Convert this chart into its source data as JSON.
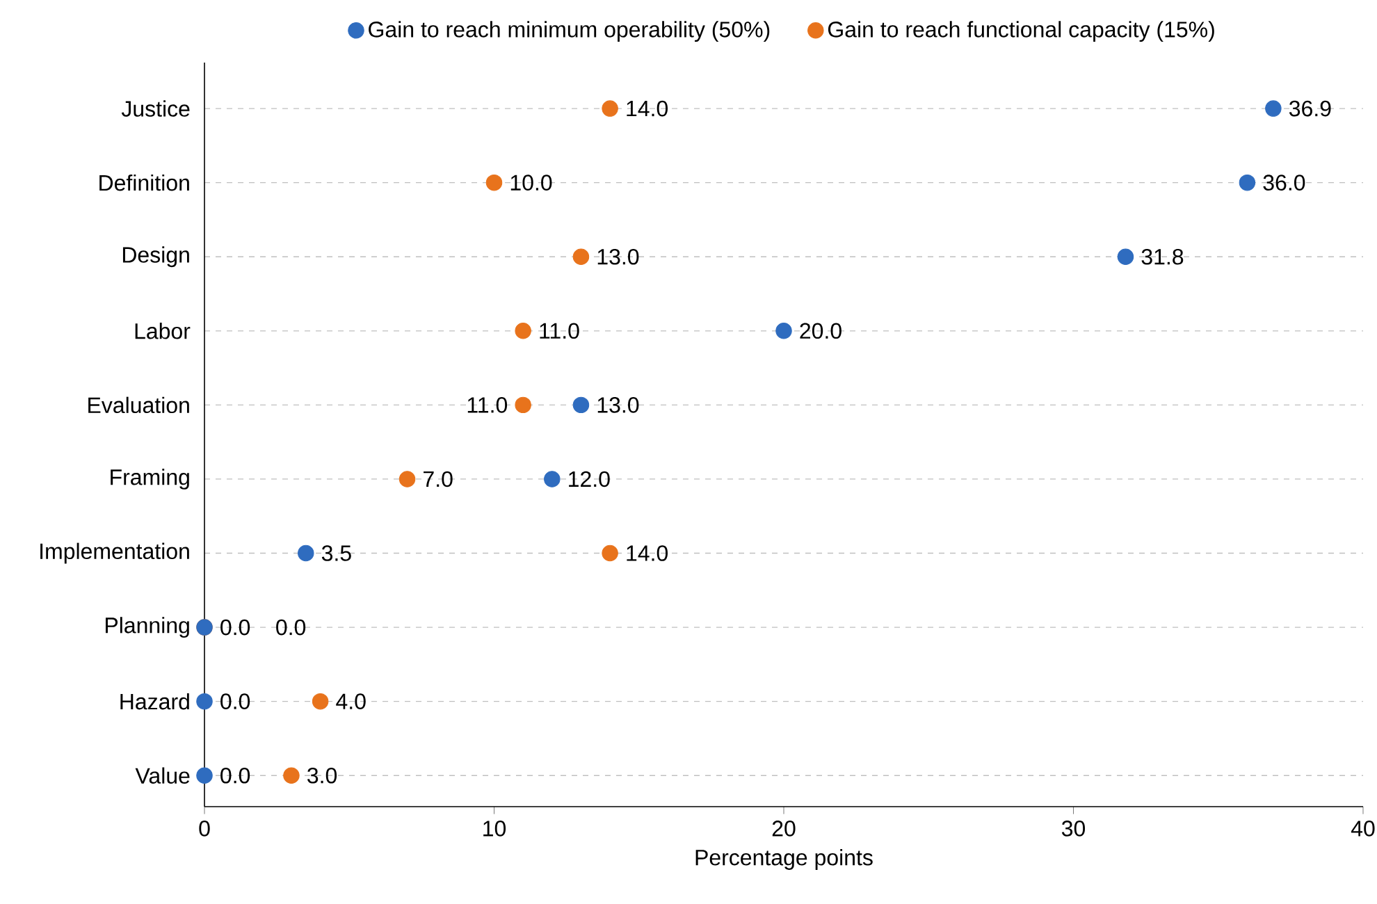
{
  "chart_data": {
    "type": "scatter",
    "orientation": "horizontal",
    "xlabel": "Percentage points",
    "categories": [
      "Justice",
      "Definition",
      "Design",
      "Labor",
      "Evaluation",
      "Framing",
      "Implementation",
      "Planning",
      "Hazard",
      "Value"
    ],
    "series": [
      {
        "name": "Gain to reach minimum operability (50%)",
        "color": "#2f6cbf",
        "values": [
          36.9,
          36.0,
          31.8,
          20.0,
          13.0,
          12.0,
          3.5,
          0.0,
          0.0,
          0.0
        ],
        "value_labels": [
          "36.9",
          "36.0",
          "31.8",
          "20.0",
          "13.0",
          "12.0",
          "3.5",
          "0.0",
          "0.0",
          "0.0"
        ]
      },
      {
        "name": "Gain to reach functional capacity (15%)",
        "color": "#e8731c",
        "values": [
          14.0,
          10.0,
          13.0,
          11.0,
          11.0,
          7.0,
          14.0,
          0.0,
          4.0,
          3.0
        ],
        "value_labels": [
          "14.0",
          "10.0",
          "13.0",
          "11.0",
          "11.0",
          "7.0",
          "14.0",
          "0.0",
          "4.0",
          "3.0"
        ]
      }
    ],
    "xlim": [
      0,
      40
    ],
    "xticks": [
      0,
      10,
      20,
      30,
      40
    ],
    "grid": "y",
    "legend": "top"
  }
}
